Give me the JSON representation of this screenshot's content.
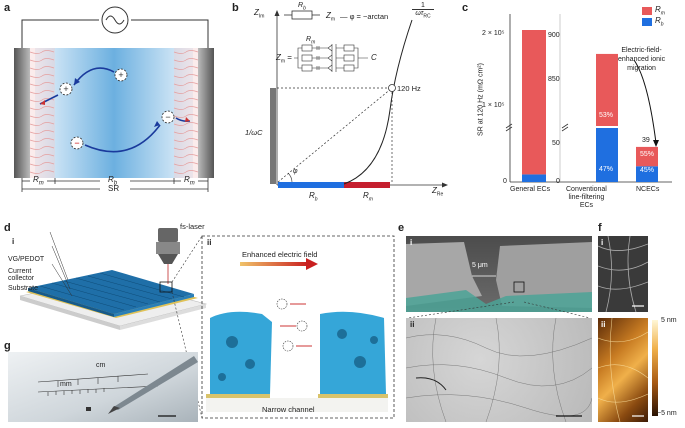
{
  "panels": {
    "a": "a",
    "b": "b",
    "c": "c",
    "d": "d",
    "e": "e",
    "f": "f",
    "g": "g"
  },
  "a": {
    "r_m_left": "R",
    "r_m_sub": "m",
    "r_b": "R",
    "r_b_sub": "b",
    "r_m_right": "R",
    "sr": "SR"
  },
  "b": {
    "z_im": "Z",
    "z_im_sub": "Im",
    "z_re": "Z",
    "z_re_sub": "Re",
    "rb_label": "R",
    "rb_sub": "b",
    "rm_label": "R",
    "rm_sub": "m",
    "zm_top": "Z",
    "zm_top_sub": "m",
    "phase_eq": "— φ = −arctan",
    "phase_frac_num": "1",
    "phase_frac_den": "ωτ",
    "phase_frac_den_sub": "RC",
    "zm_eq": "Z",
    "zm_eq_sub": "m",
    "zm_eq_sign": "=",
    "circuit_rm": "R",
    "circuit_rm_sub": "m",
    "circuit_c": "C",
    "freq": "120 Hz",
    "omega_c": "1/ωC",
    "phi": "φ"
  },
  "c": {
    "ylabel": "SR at 120 Hz (mΩ cm²)",
    "legend_rm": "R",
    "legend_rm_sub": "m",
    "legend_rb": "R",
    "legend_rb_sub": "b",
    "annotation": [
      "Electric-field-",
      "enhanced ionic",
      "migration"
    ],
    "ytick_2e5": "2 × 10⁵",
    "ytick_1e5": "1 × 10⁵",
    "ytick_0": "0",
    "ytick_900": "900",
    "ytick_850": "850",
    "ytick_50": "50",
    "ytick_0b": "0",
    "cat_general": "General ECs",
    "cat_conv": [
      "Conventional",
      "line-filtering",
      "ECs"
    ],
    "cat_ncec": "NCECs",
    "pct_53": "53%",
    "pct_47": "47%",
    "pct_55": "55%",
    "pct_45": "45%",
    "val_39": "39",
    "colors": {
      "rm": "#e8595a",
      "rb": "#1f6fe0"
    }
  },
  "chart_data": {
    "type": "bar",
    "categories": [
      "General ECs",
      "Conventional line-filtering ECs",
      "NCECs"
    ],
    "series": [
      {
        "name": "Rm",
        "values": [
          190000,
          470,
          21.5
        ]
      },
      {
        "name": "Rb",
        "values": [
          10000,
          418,
          17.5
        ]
      }
    ],
    "totals": [
      200000,
      888,
      39
    ],
    "percent_labels": {
      "Conventional line-filtering ECs": {
        "Rm": "53%",
        "Rb": "47%"
      },
      "NCECs": {
        "Rm": "55%",
        "Rb": "45%"
      }
    },
    "ylabel": "SR at 120 Hz (mΩ cm²)",
    "axis_breaks": true,
    "stacked": true
  },
  "d": {
    "i": "i",
    "ii": "ii",
    "fs_laser": "fs-laser",
    "vg_pedot": "VG/PEDOT",
    "current_collector": [
      "Current",
      "collector"
    ],
    "substrate": "Substrate",
    "enhanced_field": "Enhanced electric field",
    "narrow_channel": "Narrow channel"
  },
  "e": {
    "i": "i",
    "ii": "ii",
    "scale": "5 μm"
  },
  "f": {
    "i": "i",
    "ii": "ii",
    "cb_max": "5 nm",
    "cb_min": "−5 nm"
  },
  "g": {
    "cm": "cm",
    "mm": "mm"
  }
}
